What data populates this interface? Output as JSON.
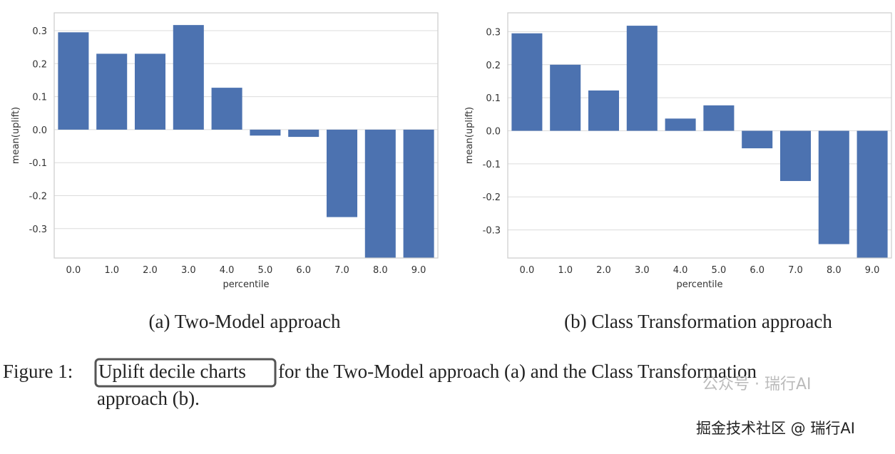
{
  "chart_data": [
    {
      "type": "bar",
      "title": "(a) Two-Model approach",
      "xlabel": "percentile",
      "ylabel": "mean(uplift)",
      "color": "#4c72b0",
      "grid": true,
      "categories": [
        "0.0",
        "1.0",
        "2.0",
        "3.0",
        "4.0",
        "5.0",
        "6.0",
        "7.0",
        "8.0",
        "9.0"
      ],
      "values": [
        0.295,
        0.23,
        0.23,
        0.317,
        0.127,
        -0.018,
        -0.022,
        -0.265,
        -0.4,
        -0.4
      ],
      "ylim": [
        -0.389,
        0.354
      ],
      "yticks": [
        -0.3,
        -0.2,
        -0.1,
        {
          "value": 0,
          "label": "0.0"
        },
        0.1,
        0.2,
        0.3
      ]
    },
    {
      "type": "bar",
      "title": "(b) Class Transformation approach",
      "xlabel": "percentile",
      "ylabel": "mean(uplift)",
      "color": "#4c72b0",
      "grid": true,
      "categories": [
        "0.0",
        "1.0",
        "2.0",
        "3.0",
        "4.0",
        "5.0",
        "6.0",
        "7.0",
        "8.0",
        "9.0"
      ],
      "values": [
        0.295,
        0.2,
        0.122,
        0.318,
        0.037,
        0.077,
        -0.053,
        -0.152,
        -0.343,
        -0.4
      ],
      "ylim": [
        -0.385,
        0.357
      ],
      "yticks": [
        -0.3,
        -0.2,
        -0.1,
        {
          "value": 0,
          "label": "0.0"
        },
        0.1,
        0.2,
        0.3
      ]
    }
  ],
  "caption": {
    "label": "Figure 1:",
    "highlight": "Uplift decile charts",
    "rest": "for the Two-Model approach (a) and the Class Transformation",
    "line2": "approach (b)."
  },
  "watermarks": [
    "公众号 · 瑞行AI",
    "掘金技术社区 @ 瑞行AI"
  ]
}
